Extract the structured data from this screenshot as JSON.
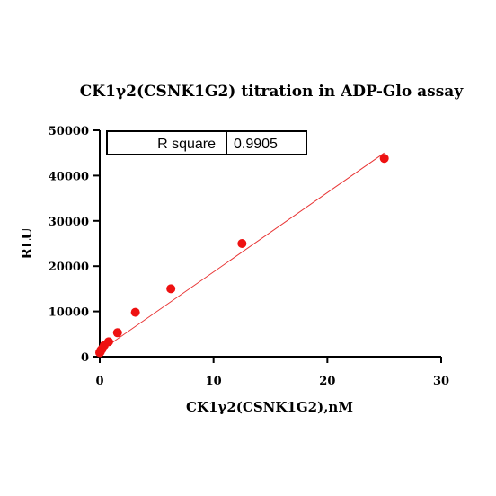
{
  "chart_data": {
    "type": "scatter",
    "title": "CK1γ2(CSNK1G2) titration in ADP-Glo assay",
    "xlabel": "CK1γ2(CSNK1G2),nM",
    "ylabel": "RLU",
    "xlim": [
      0,
      30
    ],
    "ylim": [
      0,
      50000
    ],
    "xticks": [
      0,
      10,
      20,
      30
    ],
    "yticks": [
      0,
      10000,
      20000,
      30000,
      40000,
      50000
    ],
    "x": [
      0,
      0.05,
      0.1,
      0.2,
      0.39,
      0.78,
      1.56,
      3.13,
      6.25,
      12.5,
      25
    ],
    "y": [
      900,
      1100,
      1400,
      1700,
      2500,
      3300,
      5300,
      9800,
      15000,
      25000,
      43800
    ],
    "point_color": "#ee1111",
    "fit": {
      "type": "linear",
      "x": [
        0,
        25
      ],
      "y": [
        1200,
        45000
      ],
      "color": "#e83333"
    },
    "r_square": {
      "label": "R square",
      "value": "0.9905"
    },
    "grid": false,
    "legend": "none"
  }
}
